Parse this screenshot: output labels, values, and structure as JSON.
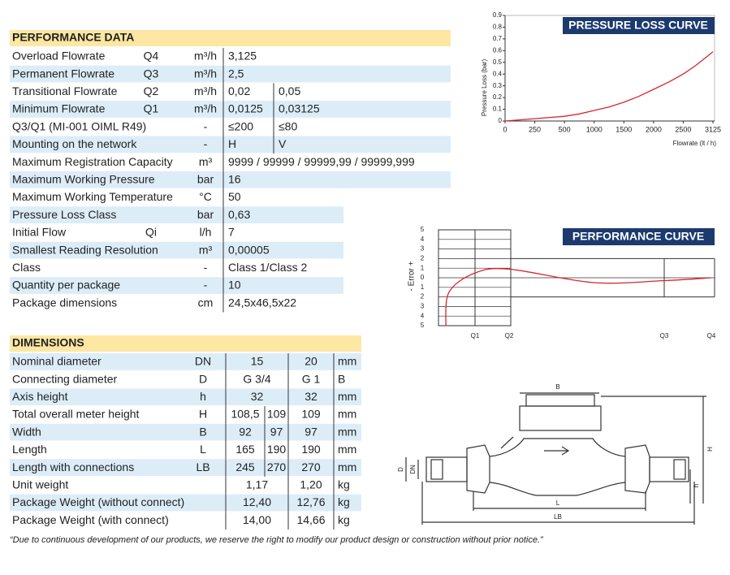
{
  "performance_data": {
    "title": "PERFORMANCE DATA",
    "rows": [
      {
        "label": "Overload Flowrate",
        "symbol": "Q4",
        "unit": "m³/h",
        "values": [
          "3,125"
        ]
      },
      {
        "label": "Permanent Flowrate",
        "symbol": "Q3",
        "unit": "m³/h",
        "values": [
          "2,5"
        ]
      },
      {
        "label": "Transitional Flowrate",
        "symbol": "Q2",
        "unit": "m³/h",
        "values": [
          "0,02",
          "0,05"
        ]
      },
      {
        "label": "Minimum Flowrate",
        "symbol": "Q1",
        "unit": "m³/h",
        "values": [
          "0,0125",
          "0,03125"
        ]
      },
      {
        "label": "Q3/Q1 (MI-001 OIML R49)",
        "unit": "-",
        "values": [
          "≤200",
          "≤80"
        ]
      },
      {
        "label": "Mounting on the network",
        "unit": "-",
        "values": [
          "H",
          "V"
        ]
      },
      {
        "label": "Maximum Registration Capacity",
        "unit": "m³",
        "values": [
          "9999 / 99999 / 99999,99 / 99999,999"
        ]
      },
      {
        "label": "Maximum Working Pressure",
        "unit": "bar",
        "values": [
          "16"
        ]
      },
      {
        "label": "Maximum Working Temperature",
        "unit": "°C",
        "values": [
          "50"
        ]
      },
      {
        "label": "Pressure Loss Class",
        "unit": "bar",
        "values": [
          "0,63"
        ]
      },
      {
        "label": "Initial Flow",
        "symbol": "Qi",
        "unit": "l/h",
        "values": [
          "7"
        ]
      },
      {
        "label": "Smallest Reading Resolution",
        "unit": "m³",
        "values": [
          "0,00005"
        ]
      },
      {
        "label": "Class",
        "unit": "-",
        "values": [
          "Class 1/Class 2"
        ]
      },
      {
        "label": "Quantity per package",
        "unit": "-",
        "values": [
          "10"
        ]
      },
      {
        "label": "Package dimensions",
        "unit": "cm",
        "values": [
          "24,5x46,5x22"
        ]
      }
    ]
  },
  "dimensions": {
    "title": "DIMENSIONS",
    "rows": [
      {
        "label": "Nominal diameter",
        "symbol": "DN",
        "values": [
          "15",
          "20"
        ],
        "unit": "mm"
      },
      {
        "label": "Connecting diameter",
        "symbol": "D",
        "values": [
          "G 3/4",
          "G 1"
        ],
        "unit": "B"
      },
      {
        "label": "Axis height",
        "symbol": "h",
        "values": [
          "32",
          "32"
        ],
        "unit": "mm"
      },
      {
        "label": "Total overall meter height",
        "symbol": "H",
        "values": [
          [
            "108,5",
            "109"
          ],
          "109"
        ],
        "unit": "mm"
      },
      {
        "label": "Width",
        "symbol": "B",
        "values": [
          [
            "92",
            "97"
          ],
          "97"
        ],
        "unit": "mm"
      },
      {
        "label": "Length",
        "symbol": "L",
        "values": [
          [
            "165",
            "190"
          ],
          "190"
        ],
        "unit": "mm"
      },
      {
        "label": "Length with connections",
        "symbol": "LB",
        "values": [
          [
            "245",
            "270"
          ],
          "270"
        ],
        "unit": "mm"
      },
      {
        "label": "Unit weight",
        "values": [
          "1,17",
          "1,20"
        ],
        "unit": "kg"
      },
      {
        "label": "Package Weight (without connect)",
        "values": [
          "12,40",
          "12,76"
        ],
        "unit": "kg"
      },
      {
        "label": "Package Weight (with connect)",
        "values": [
          "14,00",
          "14,66"
        ],
        "unit": "kg"
      }
    ]
  },
  "chart_data": [
    {
      "type": "line",
      "title": "PRESSURE LOSS CURVE",
      "x_label": "Flowrate (lt / h)",
      "y_label": "Pressure Loss (bar)",
      "x": [
        0,
        250,
        500,
        750,
        1000,
        1250,
        1500,
        1750,
        2000,
        2250,
        2500,
        2750,
        3000,
        3125
      ],
      "values": [
        0,
        0.02,
        0.04,
        0.06,
        0.09,
        0.12,
        0.16,
        0.21,
        0.27,
        0.33,
        0.4,
        0.47,
        0.55,
        0.59
      ],
      "color": "#d7262c",
      "xlim": [
        0,
        3125
      ],
      "ylim": [
        0,
        0.9
      ],
      "xticks": [
        0,
        250,
        500,
        1000,
        1500,
        2000,
        2500,
        3125
      ],
      "yticks": [
        0,
        0.1,
        0.2,
        0.3,
        0.4,
        0.5,
        0.6,
        0.7,
        0.8,
        0.9
      ]
    },
    {
      "type": "line",
      "title": "PERFORMANCE CURVE",
      "y_label": "- Error +",
      "categories": [
        null,
        null,
        "Q1",
        "Q2",
        null,
        "Q3",
        "Q4"
      ],
      "values": [
        -5,
        -1.5,
        0.5,
        0.9,
        -0.5,
        -0.3,
        0
      ],
      "color": "#d7262c",
      "ylim": [
        -5,
        5
      ],
      "yticks": [
        5,
        4,
        3,
        2,
        1,
        0,
        {
          "value": -1,
          "label": "1"
        },
        {
          "value": -2,
          "label": "2"
        },
        {
          "value": -3,
          "label": "3"
        },
        {
          "value": -4,
          "label": "4"
        },
        {
          "value": -5,
          "label": "5"
        }
      ],
      "max_error_lower_zone": 5,
      "max_error_upper_zone": 2
    }
  ],
  "drawing": {
    "width_label": "B",
    "height_label": "H",
    "diameter_label": "D",
    "nominal_label": "DN",
    "axis_label": "h",
    "length_label": "L",
    "length_connections_label": "LB"
  },
  "footnote": "“Due to continuous development of our products, we reserve the right to modify our product design or construction without prior notice.”"
}
